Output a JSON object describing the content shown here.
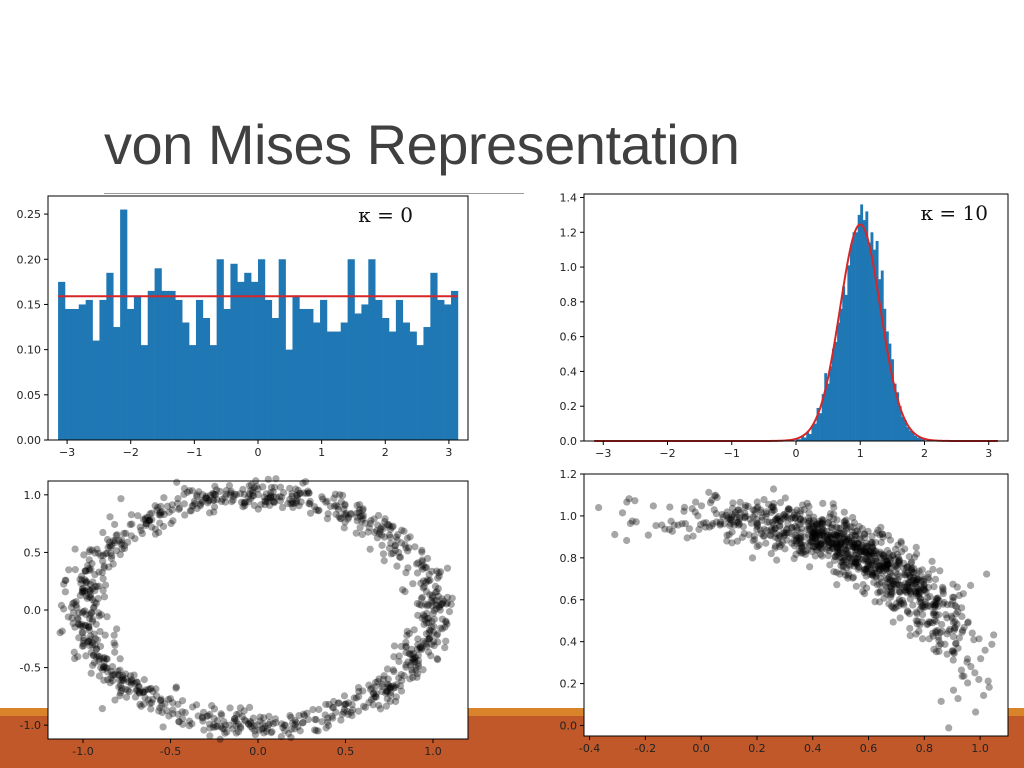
{
  "slide": {
    "title": "von Mises Representation",
    "colors": {
      "footer": "#c0582a",
      "footer_stripe": "#d9842a",
      "bar": "#1f77b4",
      "fit_line": "#d62728",
      "point": "#000000"
    }
  },
  "chart_data": [
    {
      "type": "bar",
      "annotation": "κ = 0",
      "xlim": [
        -3.3,
        3.3
      ],
      "ylim": [
        0,
        0.27
      ],
      "xticks": [
        -3,
        -2,
        -1,
        0,
        1,
        2,
        3
      ],
      "yticks": [
        0.0,
        0.05,
        0.1,
        0.15,
        0.2,
        0.25
      ],
      "ytick_labels": [
        "0.00",
        "0.05",
        "0.10",
        "0.15",
        "0.20",
        "0.25"
      ],
      "bin_start": -3.14159,
      "bin_end": 3.14159,
      "values": [
        0.175,
        0.145,
        0.145,
        0.15,
        0.155,
        0.11,
        0.155,
        0.185,
        0.125,
        0.255,
        0.145,
        0.16,
        0.105,
        0.165,
        0.19,
        0.165,
        0.165,
        0.155,
        0.13,
        0.105,
        0.155,
        0.135,
        0.105,
        0.2,
        0.145,
        0.195,
        0.175,
        0.185,
        0.175,
        0.2,
        0.155,
        0.135,
        0.2,
        0.1,
        0.16,
        0.145,
        0.145,
        0.13,
        0.155,
        0.12,
        0.12,
        0.13,
        0.2,
        0.14,
        0.15,
        0.2,
        0.155,
        0.135,
        0.12,
        0.155,
        0.13,
        0.12,
        0.105,
        0.125,
        0.185,
        0.155,
        0.15,
        0.165
      ],
      "fit_line": {
        "x": [
          -3.14159,
          3.14159
        ],
        "y": [
          0.159,
          0.159
        ]
      },
      "grid": false
    },
    {
      "type": "bar",
      "annotation": "κ = 10",
      "xlim": [
        -3.3,
        3.3
      ],
      "ylim": [
        0,
        1.42
      ],
      "xticks": [
        -3,
        -2,
        -1,
        0,
        1,
        2,
        3
      ],
      "yticks": [
        0.0,
        0.2,
        0.4,
        0.6,
        0.8,
        1.0,
        1.2,
        1.4
      ],
      "ytick_labels": [
        "0.0",
        "0.2",
        "0.4",
        "0.6",
        "0.8",
        "1.0",
        "1.2",
        "1.4"
      ],
      "bin_start": 0.0,
      "bin_width": 0.04,
      "values": [
        0.01,
        0.01,
        0.03,
        0.02,
        0.05,
        0.04,
        0.09,
        0.1,
        0.19,
        0.16,
        0.27,
        0.39,
        0.33,
        0.43,
        0.53,
        0.57,
        0.68,
        0.76,
        0.89,
        0.84,
        1.01,
        1.13,
        1.2,
        1.2,
        1.3,
        1.36,
        1.27,
        1.32,
        1.14,
        1.2,
        1.1,
        1.15,
        0.93,
        0.98,
        0.76,
        0.63,
        0.56,
        0.47,
        0.33,
        0.28,
        0.2,
        0.14,
        0.12,
        0.08,
        0.06,
        0.05,
        0.03,
        0.02,
        0.02,
        0.01
      ],
      "fit_line": {
        "kappa": 10,
        "mu": 1.0
      },
      "grid": false
    },
    {
      "type": "scatter",
      "xlim": [
        -1.2,
        1.2
      ],
      "ylim": [
        -1.12,
        1.12
      ],
      "xticks": [
        -1.0,
        -0.5,
        0.0,
        0.5,
        1.0
      ],
      "xtick_labels": [
        "-1.0",
        "-0.5",
        "0.0",
        "0.5",
        "1.0"
      ],
      "yticks": [
        -1.0,
        -0.5,
        0.0,
        0.5,
        1.0
      ],
      "ytick_labels": [
        "-1.0",
        "-0.5",
        "0.0",
        "0.5",
        "1.0"
      ],
      "shape": "noisy unit circle",
      "radius": 1.0,
      "noise": 0.06,
      "n_points": 1000,
      "marker_alpha": 0.35,
      "grid": false
    },
    {
      "type": "scatter",
      "xlim": [
        -0.42,
        1.1
      ],
      "ylim": [
        -0.05,
        1.2
      ],
      "xticks": [
        -0.4,
        -0.2,
        0.0,
        0.2,
        0.4,
        0.6,
        0.8,
        1.0
      ],
      "xtick_labels": [
        "-0.4",
        "-0.2",
        "0.0",
        "0.2",
        "0.4",
        "0.6",
        "0.8",
        "1.0"
      ],
      "yticks": [
        0.0,
        0.2,
        0.4,
        0.6,
        0.8,
        1.0,
        1.2
      ],
      "ytick_labels": [
        "0.0",
        "0.2",
        "0.4",
        "0.6",
        "0.8",
        "1.0",
        "1.2"
      ],
      "shape": "noisy arc of unit circle, angles concentrated near 1.0 rad",
      "kappa": 10,
      "mu": 1.0,
      "noise": 0.06,
      "n_points": 1000,
      "marker_alpha": 0.35,
      "grid": false
    }
  ]
}
